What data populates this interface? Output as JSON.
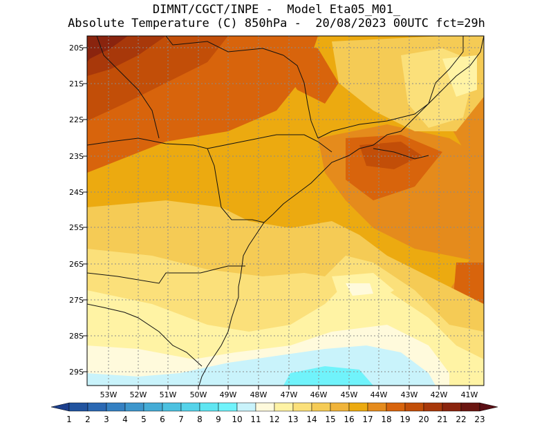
{
  "title": {
    "line1": "DIMNT/CGCT/INPE -  Model Eta05_M01_",
    "line2": "Absolute Temperature (C) 850hPa -  20/08/2023 00UTC fct=29h"
  },
  "map": {
    "lat_ticks": [
      "20S",
      "21S",
      "22S",
      "23S",
      "24S",
      "25S",
      "26S",
      "27S",
      "28S",
      "29S"
    ],
    "lon_ticks": [
      "53W",
      "52W",
      "51W",
      "50W",
      "49W",
      "48W",
      "47W",
      "46W",
      "45W",
      "44W",
      "43W",
      "42W",
      "41W"
    ]
  },
  "colorbar": {
    "labels": [
      "1",
      "2",
      "3",
      "4",
      "5",
      "6",
      "7",
      "8",
      "9",
      "10",
      "11",
      "12",
      "13",
      "14",
      "15",
      "16",
      "17",
      "18",
      "19",
      "20",
      "21",
      "22",
      "23"
    ],
    "colors": [
      "#1c3f8c",
      "#21539f",
      "#2a68b3",
      "#3480c2",
      "#3d96cc",
      "#45acd6",
      "#4cc1e0",
      "#55d3ea",
      "#5fe6f2",
      "#70f3fb",
      "#c9f3fb",
      "#fffadc",
      "#fff3a4",
      "#fbe07a",
      "#f5cb55",
      "#f0b43a",
      "#ecaa10",
      "#e58b1c",
      "#d8640c",
      "#c24e08",
      "#a8380a",
      "#8a240e",
      "#6a1510",
      "#5a0e14"
    ]
  }
}
